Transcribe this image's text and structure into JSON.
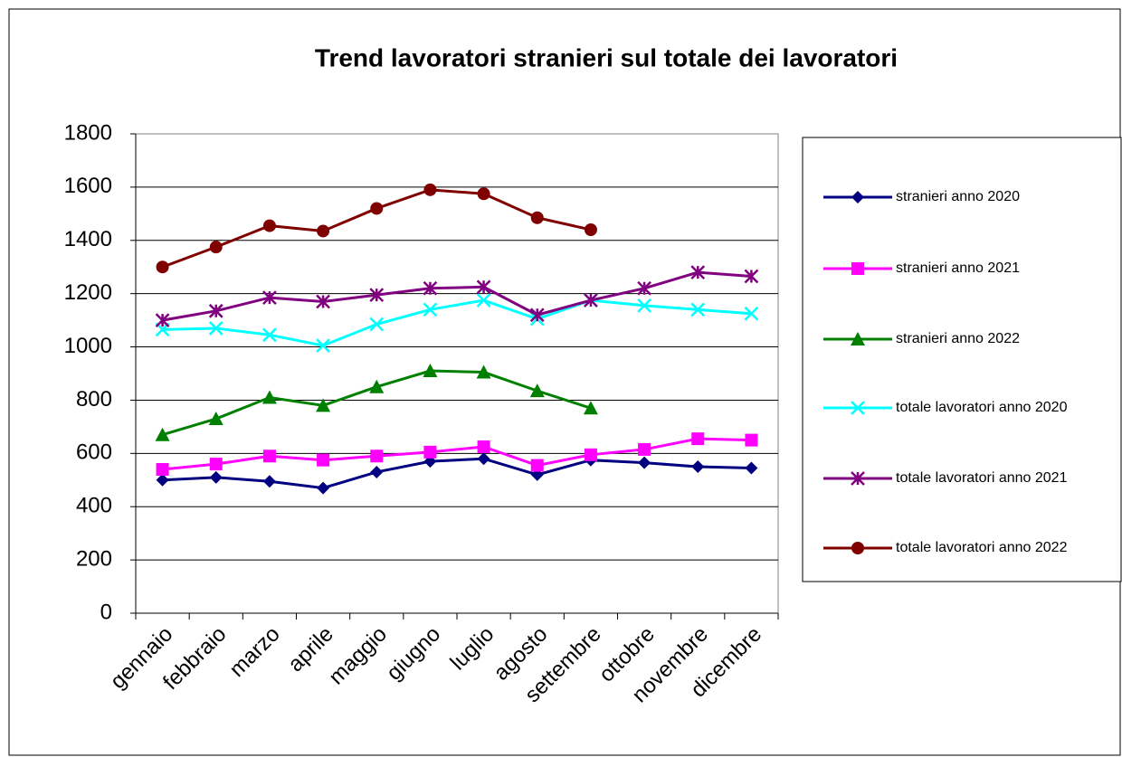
{
  "chart_data": {
    "type": "line",
    "title": "Trend lavoratori stranieri sul totale dei lavoratori",
    "categories": [
      "gennaio",
      "febbraio",
      "marzo",
      "aprile",
      "maggio",
      "giugno",
      "luglio",
      "agosto",
      "settembre",
      "ottobre",
      "novembre",
      "dicembre"
    ],
    "series": [
      {
        "name": "stranieri anno 2020",
        "color": "#000080",
        "marker": "diamond",
        "values": [
          500,
          510,
          495,
          470,
          530,
          570,
          580,
          520,
          575,
          565,
          550,
          545
        ]
      },
      {
        "name": "stranieri anno 2021",
        "color": "#ff00ff",
        "marker": "square",
        "values": [
          540,
          560,
          590,
          575,
          590,
          605,
          625,
          555,
          595,
          615,
          655,
          650
        ]
      },
      {
        "name": "stranieri anno 2022",
        "color": "#008000",
        "marker": "triangle",
        "values": [
          670,
          730,
          810,
          780,
          850,
          910,
          905,
          835,
          770,
          null,
          null,
          null
        ]
      },
      {
        "name": "totale lavoratori anno 2020",
        "color": "#00ffff",
        "marker": "x",
        "values": [
          1065,
          1070,
          1045,
          1005,
          1085,
          1140,
          1175,
          1105,
          1175,
          1155,
          1140,
          1125
        ]
      },
      {
        "name": "totale lavoratori anno 2021",
        "color": "#800080",
        "marker": "star",
        "values": [
          1100,
          1135,
          1185,
          1170,
          1195,
          1220,
          1225,
          1120,
          1175,
          1220,
          1280,
          1265
        ]
      },
      {
        "name": "totale lavoratori anno 2022",
        "color": "#800000",
        "marker": "circle",
        "values": [
          1300,
          1375,
          1455,
          1435,
          1520,
          1590,
          1575,
          1485,
          1440,
          null,
          null,
          null
        ]
      }
    ],
    "ylim": [
      0,
      1800
    ],
    "yticks": [
      0,
      200,
      400,
      600,
      800,
      1000,
      1200,
      1400,
      1600,
      1800
    ],
    "grid": true,
    "legend": "right"
  }
}
